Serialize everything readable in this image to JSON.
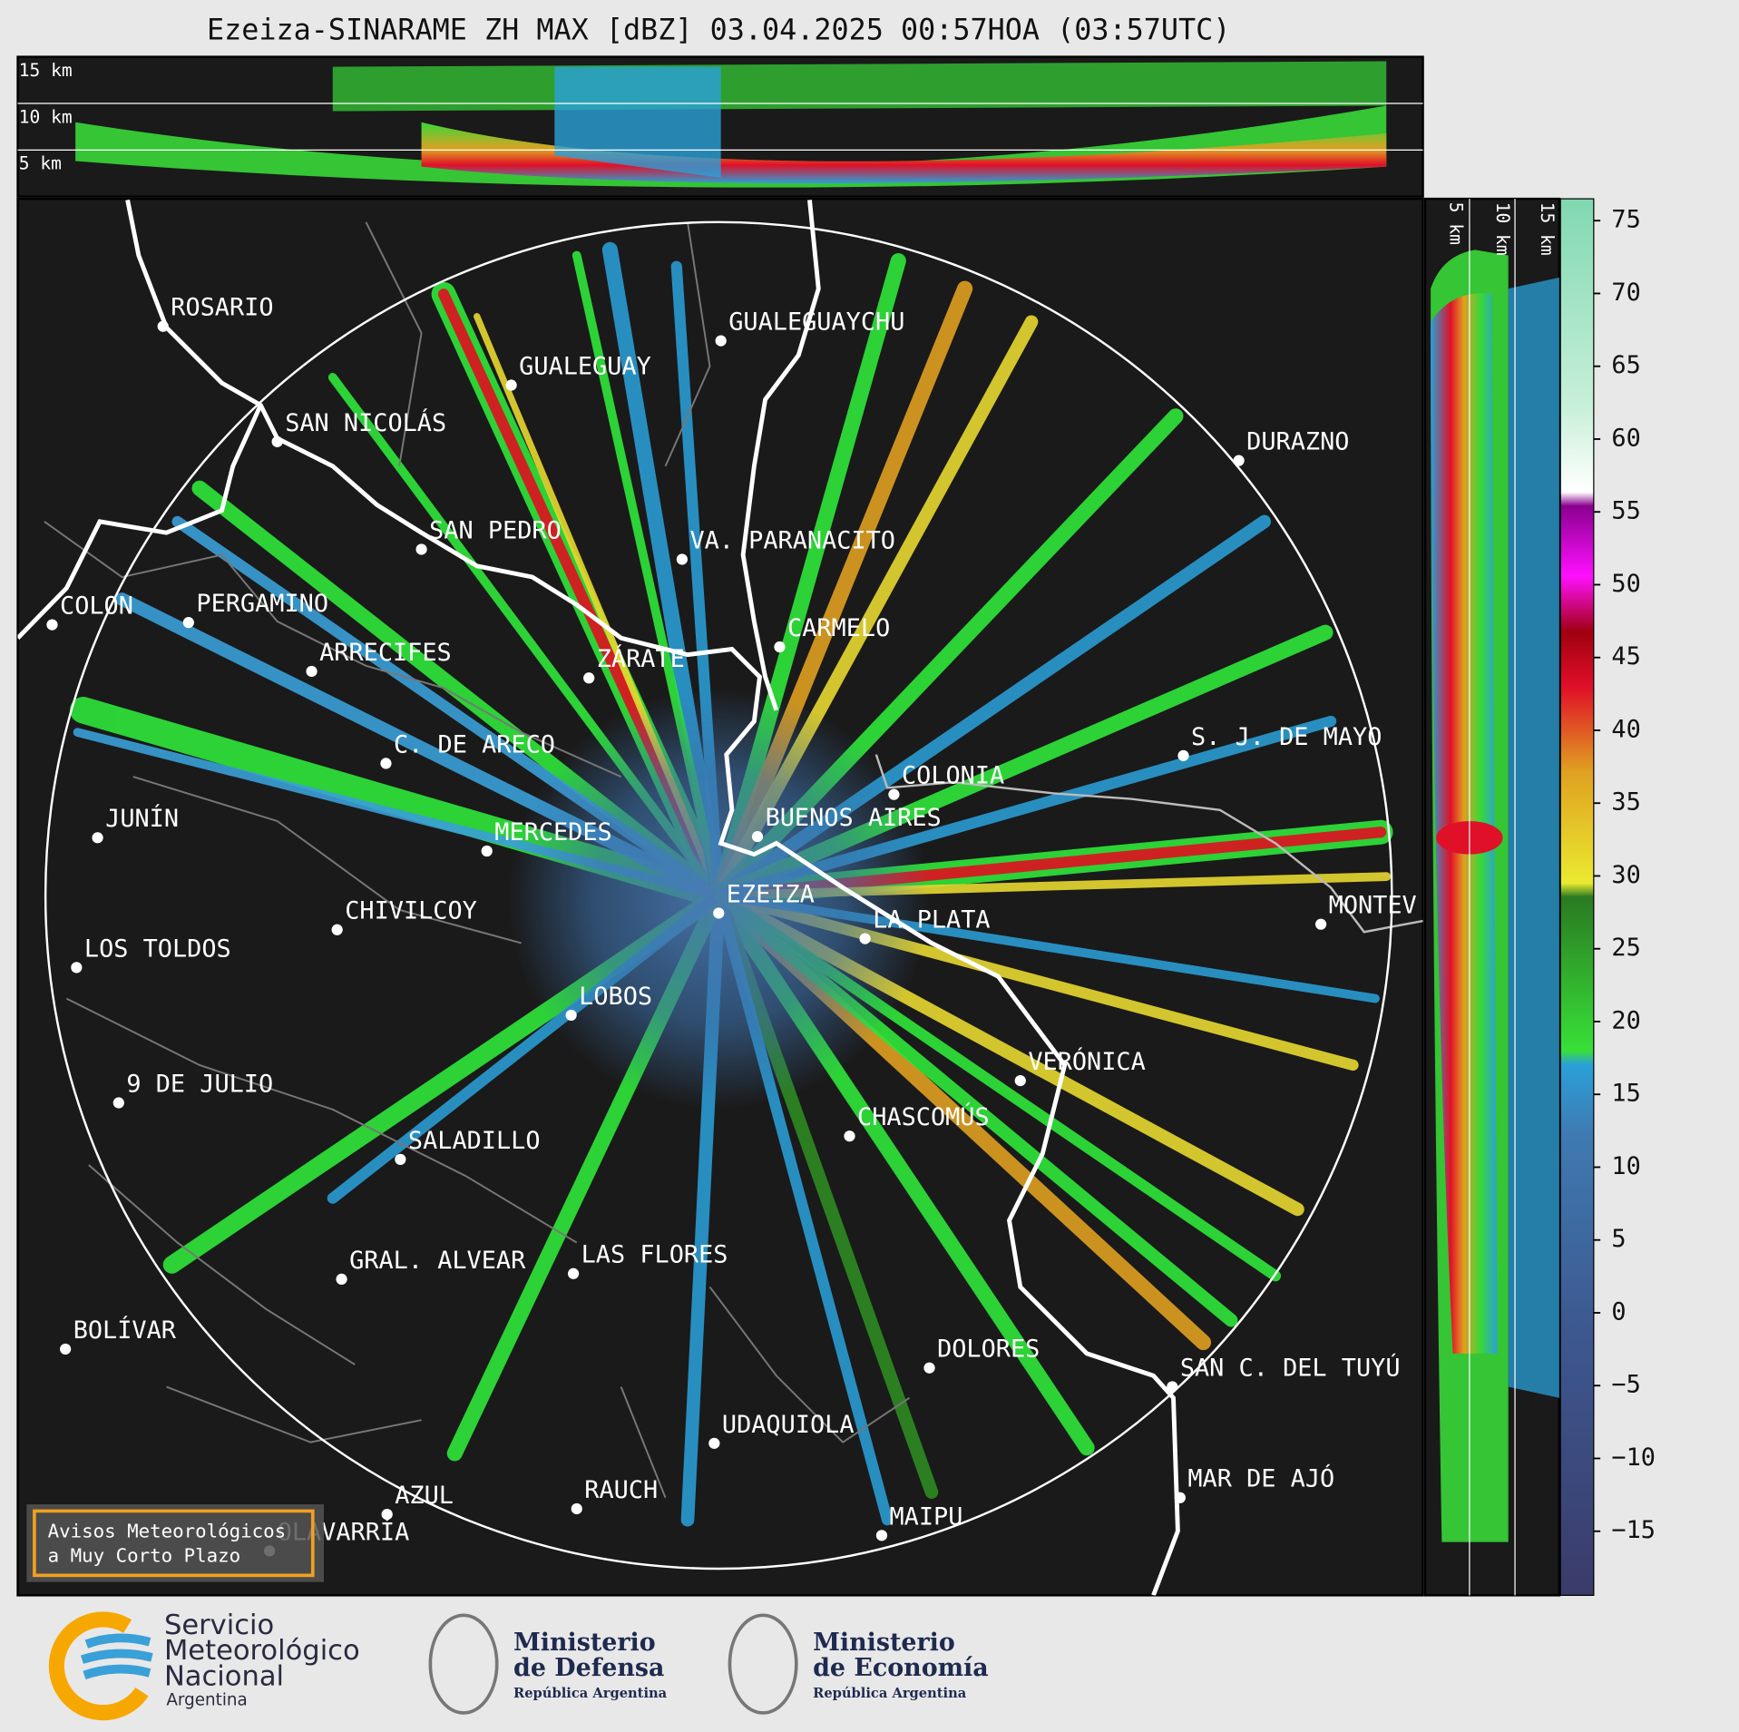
{
  "title": "Ezeiza-SINARAME ZH MAX [dBZ] 03.04.2025 00:57HOA (03:57UTC)",
  "top_panel": {
    "height_labels": [
      "15 km",
      "10 km",
      "5 km"
    ]
  },
  "side_panel": {
    "height_labels": [
      "5 km",
      "10 km",
      "15 km"
    ]
  },
  "cities": [
    "ROSARIO",
    "GUALEGUAYCHU",
    "GUALEGUAY",
    "SAN NICOLÁS",
    "DURAZNO",
    "SAN PEDRO",
    "VA. PARANACITO",
    "COLON",
    "PERGAMINO",
    "CARMELO",
    "ARRECIFES",
    "ZÁRATE",
    "C. DE ARECO",
    "S. J. DE MAYO",
    "COLONIA",
    "BUENOS AIRES",
    "JUNÍN",
    "MERCEDES",
    "EZEIZA",
    "MONTEV",
    "LA PLATA",
    "CHIVILCOY",
    "LOS TOLDOS",
    "LOBOS",
    "VERÓNICA",
    "9 DE JULIO",
    "CHASCOMÚS",
    "SALADILLO",
    "GRAL. ALVEAR",
    "LAS FLORES",
    "BOLÍVAR",
    "DOLORES",
    "SAN C. DEL TUYÚ",
    "UDAQUIOLA",
    "MAR DE AJÓ",
    "AZUL",
    "RAUCH",
    "MAIPU",
    "OLAVARRÍA"
  ],
  "colorbar": {
    "lim": [
      -19.4,
      76.5
    ],
    "ticks": [
      75,
      70,
      65,
      60,
      55,
      50,
      45,
      40,
      35,
      30,
      25,
      20,
      15,
      10,
      5,
      0,
      {
        "value": -5,
        "label": "−5"
      },
      {
        "value": -10,
        "label": "−10"
      },
      {
        "value": -15,
        "label": "−15"
      }
    ]
  },
  "warning_box": {
    "lines": [
      "Avisos Meteorológicos",
      "a Muy Corto Plazo"
    ]
  },
  "logos": {
    "smn": [
      "Servicio",
      "Meteorológico",
      "Nacional",
      "Argentina"
    ],
    "defensa": [
      "Ministerio",
      "de Defensa",
      "República Argentina"
    ],
    "economia": [
      "Ministerio",
      "de Economía",
      "República Argentina"
    ]
  }
}
